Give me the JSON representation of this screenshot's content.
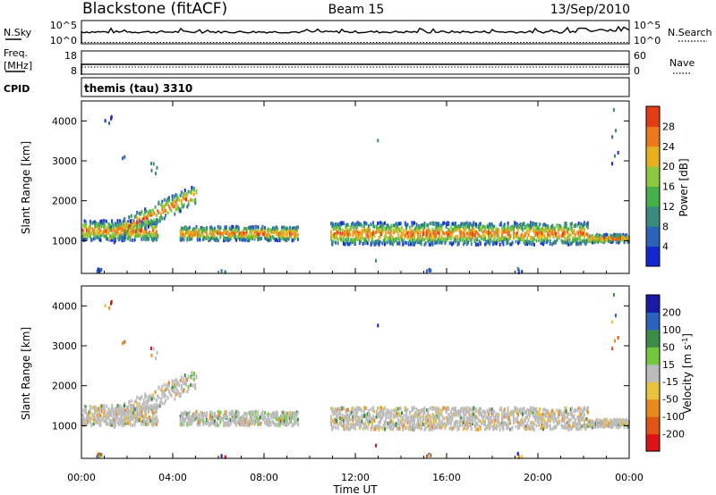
{
  "header": {
    "station": "Blackstone (fitACF)",
    "beam": "Beam 15",
    "date": "13/Sep/2010"
  },
  "nsky_panel": {
    "left_label": "N.Sky",
    "right_label": "N.Search",
    "left_ticks": [
      "10^5",
      "10^0"
    ],
    "right_ticks": [
      "10^5",
      "10^0"
    ]
  },
  "freq_panel": {
    "left_label_line1": "Freq.",
    "left_label_line2": "[MHz]",
    "right_label": "Nave",
    "left_ticks": [
      "18",
      "8"
    ],
    "right_ticks": [
      "60",
      "0"
    ]
  },
  "cpid_panel": {
    "label": "CPID",
    "value": "themis (tau) 3310"
  },
  "colors": {
    "power_scale": [
      "#1428d2",
      "#2a64b8",
      "#3a8a7e",
      "#48b048",
      "#8cc83c",
      "#e8b020",
      "#ec7818",
      "#e23c14"
    ],
    "velocity_scale": [
      "#1a1aa8",
      "#2a62c0",
      "#3a8c46",
      "#72c83a",
      "#bcbcbc",
      "#e8c23c",
      "#ea8a1e",
      "#e05414",
      "#dc1414"
    ],
    "axis": "#000000"
  },
  "chart_data": [
    {
      "type": "heatmap",
      "name": "power_panel",
      "ylabel": "Slant Range [km]",
      "ylim": [
        180,
        4500
      ],
      "yticks": [
        1000,
        2000,
        3000,
        4000
      ],
      "xlim": [
        0,
        24
      ],
      "colorbar": {
        "label": "Power [dB]",
        "ticks": [
          4,
          8,
          12,
          16,
          20,
          24,
          28
        ],
        "range": [
          0,
          32
        ]
      }
    },
    {
      "type": "heatmap",
      "name": "velocity_panel",
      "ylabel": "Slant Range [km]",
      "xlabel": "Time UT",
      "ylim": [
        180,
        4500
      ],
      "yticks": [
        1000,
        2000,
        3000,
        4000
      ],
      "xlim": [
        0,
        24
      ],
      "xticks": [
        "00:00",
        "04:00",
        "08:00",
        "12:00",
        "16:00",
        "20:00",
        "00:00"
      ],
      "colorbar": {
        "label": "Velocity [m s^-1]",
        "ticks": [
          "200",
          "100",
          "50",
          "15",
          "-15",
          "-50",
          "-100",
          "-200"
        ]
      }
    }
  ]
}
